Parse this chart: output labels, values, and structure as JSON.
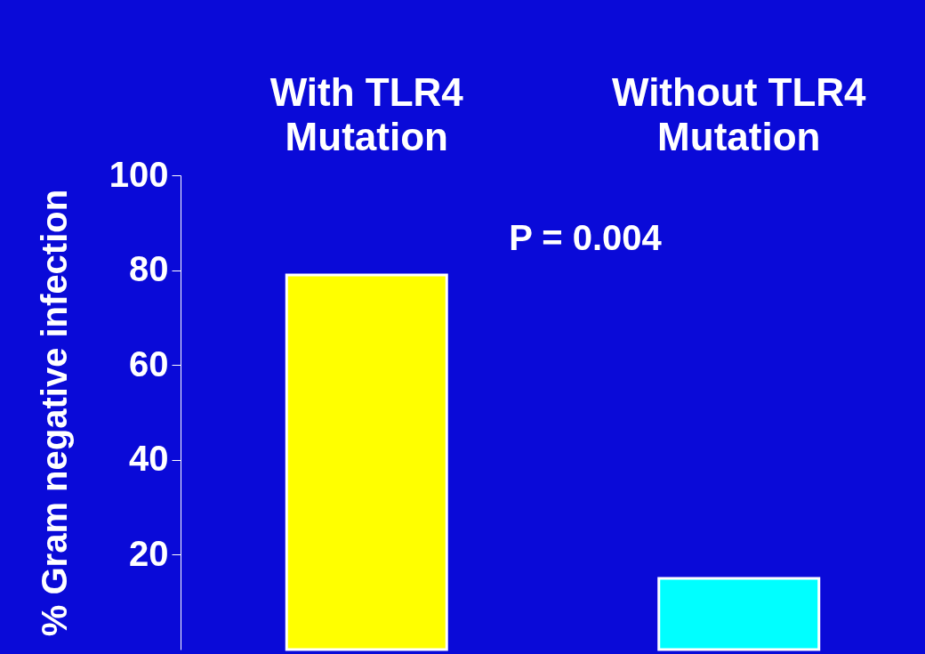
{
  "chart_data": {
    "type": "bar",
    "categories": [
      "With TLR4\nMutation",
      "Without TLR4\nMutation"
    ],
    "values": [
      79,
      15
    ],
    "colors": [
      "#ffff00",
      "#00ffff"
    ],
    "ylabel": "% Gram negative infection",
    "ylim": [
      0,
      100
    ],
    "yticks": [
      20,
      40,
      60,
      80,
      100
    ],
    "annotations": [
      "P = 0.004"
    ],
    "grid": false
  }
}
